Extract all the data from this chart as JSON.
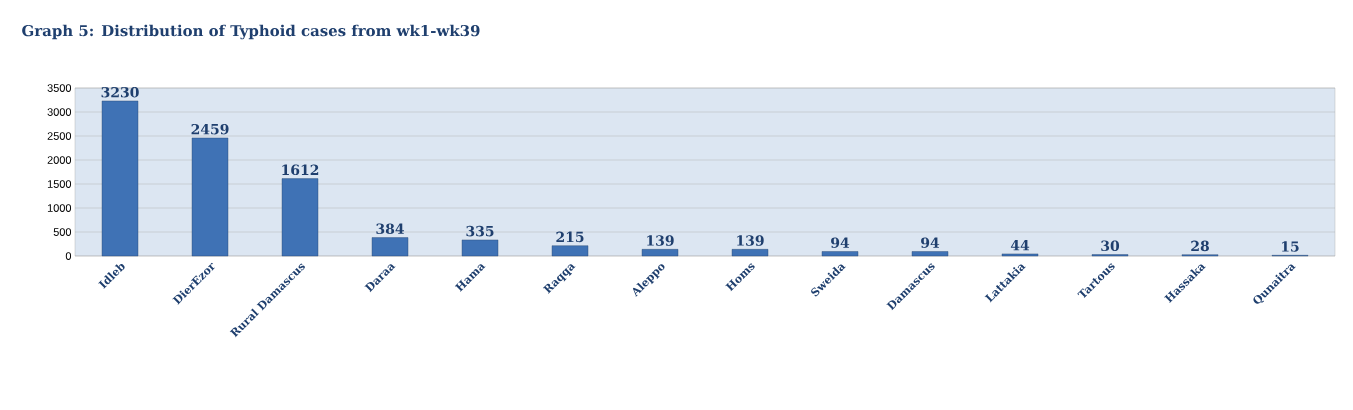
{
  "chart_data": {
    "type": "bar",
    "title": "Graph 5: Distribution of Typhoid cases from wk1-wk39",
    "categories": [
      "Idleb",
      "DierEzor",
      "Rural Damascus",
      "Daraa",
      "Hama",
      "Raqqa",
      "Aleppo",
      "Homs",
      "Sweida",
      "Damascus",
      "Lattakia",
      "Tartous",
      "Hassaka",
      "Qunaitra"
    ],
    "values": [
      3230,
      2459,
      1612,
      384,
      335,
      215,
      139,
      139,
      94,
      94,
      44,
      30,
      28,
      15
    ],
    "color": "#3f72b5",
    "ylim": [
      0,
      3500
    ],
    "yticks": [
      0,
      500,
      1000,
      1500,
      2000,
      2500,
      3000,
      3500
    ],
    "grid": "y",
    "data_labels": true
  }
}
